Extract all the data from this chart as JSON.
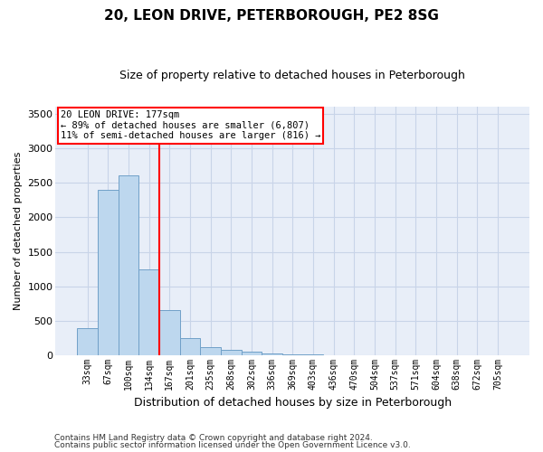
{
  "title": "20, LEON DRIVE, PETERBOROUGH, PE2 8SG",
  "subtitle": "Size of property relative to detached houses in Peterborough",
  "xlabel": "Distribution of detached houses by size in Peterborough",
  "ylabel": "Number of detached properties",
  "footnote1": "Contains HM Land Registry data © Crown copyright and database right 2024.",
  "footnote2": "Contains public sector information licensed under the Open Government Licence v3.0.",
  "categories": [
    "33sqm",
    "67sqm",
    "100sqm",
    "134sqm",
    "167sqm",
    "201sqm",
    "235sqm",
    "268sqm",
    "302sqm",
    "336sqm",
    "369sqm",
    "403sqm",
    "436sqm",
    "470sqm",
    "504sqm",
    "537sqm",
    "571sqm",
    "604sqm",
    "638sqm",
    "672sqm",
    "705sqm"
  ],
  "bar_values": [
    400,
    2400,
    2600,
    1250,
    650,
    250,
    115,
    75,
    55,
    30,
    15,
    10,
    0,
    0,
    0,
    0,
    0,
    0,
    0,
    0,
    0
  ],
  "bar_color": "#bdd7ee",
  "bar_edge_color": "#70a0c8",
  "grid_color": "#c8d4e8",
  "background_color": "#e8eef8",
  "annotation_line1": "20 LEON DRIVE: 177sqm",
  "annotation_line2": "← 89% of detached houses are smaller (6,807)",
  "annotation_line3": "11% of semi-detached houses are larger (816) →",
  "annotation_box_color": "white",
  "annotation_box_edge_color": "red",
  "vline_color": "red",
  "vline_x": 3.5,
  "ylim": [
    0,
    3600
  ],
  "yticks": [
    0,
    500,
    1000,
    1500,
    2000,
    2500,
    3000,
    3500
  ],
  "title_fontsize": 11,
  "subtitle_fontsize": 9,
  "ylabel_fontsize": 8,
  "xlabel_fontsize": 9
}
